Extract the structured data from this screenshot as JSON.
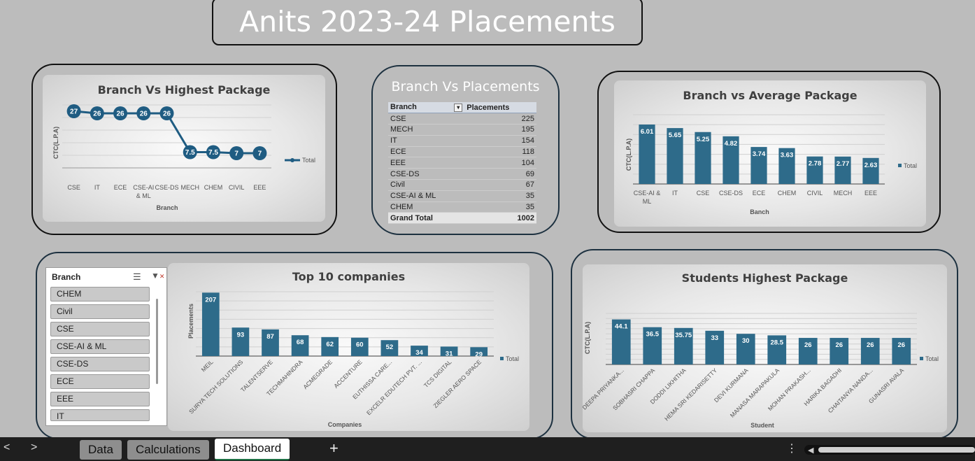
{
  "dashboard": {
    "title": "Anits 2023-24 Placements"
  },
  "highest_package": {
    "title": "Branch Vs Highest Package",
    "ylabel": "CTC(L.P.A)",
    "xlabel": "Branch",
    "legend": "Total",
    "categories": [
      "CSE",
      "IT",
      "ECE",
      "CSE-AI & ML",
      "CSE-DS",
      "MECH",
      "CHEM",
      "CIVIL",
      "EEE"
    ],
    "values": [
      27,
      26,
      26,
      26,
      26,
      7.5,
      7.5,
      7,
      7
    ],
    "color": "#1f5c82"
  },
  "placements_table": {
    "title": "Branch Vs Placements",
    "col_branch": "Branch",
    "col_placements": "Placements",
    "rows": [
      {
        "branch": "CSE",
        "placements": "225"
      },
      {
        "branch": "MECH",
        "placements": "195"
      },
      {
        "branch": "IT",
        "placements": "154"
      },
      {
        "branch": "ECE",
        "placements": "118"
      },
      {
        "branch": "EEE",
        "placements": "104"
      },
      {
        "branch": "CSE-DS",
        "placements": "69"
      },
      {
        "branch": "Civil",
        "placements": "67"
      },
      {
        "branch": "CSE-AI & ML",
        "placements": "35"
      },
      {
        "branch": "CHEM",
        "placements": "35"
      }
    ],
    "total_label": "Grand Total",
    "total_value": "1002"
  },
  "average_package": {
    "title": "Branch vs Average Package",
    "ylabel": "CTC(L.P.A)",
    "xlabel": "Banch",
    "legend": "Total",
    "categories": [
      "CSE-AI & ML",
      "IT",
      "CSE",
      "CSE-DS",
      "ECE",
      "CHEM",
      "CIVIL",
      "MECH",
      "EEE"
    ],
    "values": [
      6.01,
      5.65,
      5.25,
      4.82,
      3.74,
      3.63,
      2.78,
      2.77,
      2.63
    ],
    "color": "#2e6b8a"
  },
  "slicer": {
    "title": "Branch",
    "items": [
      "CHEM",
      "Civil",
      "CSE",
      "CSE-AI & ML",
      "CSE-DS",
      "ECE",
      "EEE",
      "IT"
    ]
  },
  "top_companies": {
    "title": "Top 10 companies",
    "ylabel": "Placements",
    "xlabel": "Companies",
    "legend": "Total",
    "categories": [
      "MEIL",
      "SURYA TECH SOLUTIONS",
      "TALENTSERVE",
      "TECHMAHINDRA",
      "ACMEGRADE",
      "ACCENTURE",
      "EUTHISSA CARE...",
      "EXCELR EDUTECH PVT. ...",
      "TCS DIGITAL",
      "ZIEGLER AERO SPACE"
    ],
    "values": [
      207,
      93,
      87,
      68,
      62,
      60,
      52,
      34,
      31,
      29
    ],
    "color": "#2e6b8a"
  },
  "student_package": {
    "title": "Students Highest Package",
    "ylabel": "CTC(L.P.A)",
    "xlabel": "Student",
    "legend": "Total",
    "categories": [
      "DEEPA PRIYANKA...",
      "SOBHASRI CHAPPA",
      "DODDI LIKHITHA",
      "HEMA SRI KEDARISETTY",
      "DEVI KURMANA",
      "MANASA MARAPAKULA",
      "MOHAN PRAKASH...",
      "HARIKA BAGADHI",
      "CHAITANYA NANDA...",
      "GUNASRI AVALA"
    ],
    "values": [
      44.1,
      36.5,
      35.75,
      33,
      30,
      28.5,
      26,
      26,
      26,
      26
    ],
    "color": "#2e6b8a"
  },
  "sheet_tabs": {
    "tabs": [
      "Data",
      "Calculations",
      "Dashboard"
    ],
    "active": "Dashboard",
    "add_label": "+",
    "prev_label": "<",
    "next_label": ">",
    "menu_label": "⋮"
  }
}
